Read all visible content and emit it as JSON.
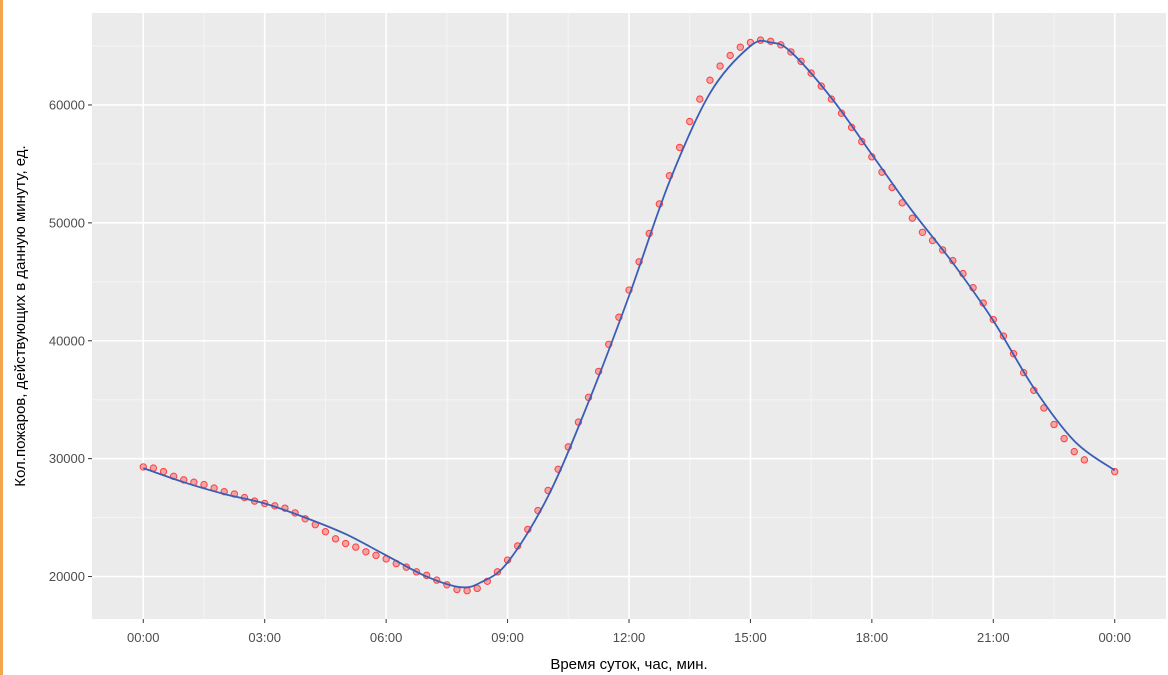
{
  "chart_data": {
    "type": "scatter",
    "xlabel": "Время суток, час, мин.",
    "ylabel": "Кол.пожаров, действующих в данную минуту, ед.",
    "x_unit": "minutes of day",
    "xlim": [
      -76,
      1516
    ],
    "ylim": [
      16400,
      67800
    ],
    "x_ticks": [
      {
        "value": 0,
        "label": "00:00"
      },
      {
        "value": 180,
        "label": "03:00"
      },
      {
        "value": 360,
        "label": "06:00"
      },
      {
        "value": 540,
        "label": "09:00"
      },
      {
        "value": 720,
        "label": "12:00"
      },
      {
        "value": 900,
        "label": "15:00"
      },
      {
        "value": 1080,
        "label": "18:00"
      },
      {
        "value": 1260,
        "label": "21:00"
      },
      {
        "value": 1440,
        "label": "00:00"
      }
    ],
    "y_ticks": [
      {
        "value": 20000,
        "label": "20000"
      },
      {
        "value": 30000,
        "label": "30000"
      },
      {
        "value": 40000,
        "label": "40000"
      },
      {
        "value": 50000,
        "label": "50000"
      },
      {
        "value": 60000,
        "label": "60000"
      }
    ],
    "grid": true,
    "series": [
      {
        "kind": "points",
        "color": "#ff2020",
        "values": [
          [
            0,
            29300
          ],
          [
            15,
            29200
          ],
          [
            30,
            28900
          ],
          [
            45,
            28500
          ],
          [
            60,
            28200
          ],
          [
            75,
            28000
          ],
          [
            90,
            27800
          ],
          [
            105,
            27500
          ],
          [
            120,
            27200
          ],
          [
            135,
            27000
          ],
          [
            150,
            26700
          ],
          [
            165,
            26400
          ],
          [
            180,
            26200
          ],
          [
            195,
            26000
          ],
          [
            210,
            25800
          ],
          [
            225,
            25400
          ],
          [
            240,
            24900
          ],
          [
            255,
            24400
          ],
          [
            270,
            23800
          ],
          [
            285,
            23200
          ],
          [
            300,
            22800
          ],
          [
            315,
            22500
          ],
          [
            330,
            22100
          ],
          [
            345,
            21800
          ],
          [
            360,
            21500
          ],
          [
            375,
            21100
          ],
          [
            390,
            20800
          ],
          [
            405,
            20400
          ],
          [
            420,
            20100
          ],
          [
            435,
            19700
          ],
          [
            450,
            19300
          ],
          [
            465,
            18900
          ],
          [
            480,
            18800
          ],
          [
            495,
            19000
          ],
          [
            510,
            19600
          ],
          [
            525,
            20400
          ],
          [
            540,
            21400
          ],
          [
            555,
            22600
          ],
          [
            570,
            24000
          ],
          [
            585,
            25600
          ],
          [
            600,
            27300
          ],
          [
            615,
            29100
          ],
          [
            630,
            31000
          ],
          [
            645,
            33100
          ],
          [
            660,
            35200
          ],
          [
            675,
            37400
          ],
          [
            690,
            39700
          ],
          [
            705,
            42000
          ],
          [
            720,
            44300
          ],
          [
            735,
            46700
          ],
          [
            750,
            49100
          ],
          [
            765,
            51600
          ],
          [
            780,
            54000
          ],
          [
            795,
            56400
          ],
          [
            810,
            58600
          ],
          [
            825,
            60500
          ],
          [
            840,
            62100
          ],
          [
            855,
            63300
          ],
          [
            870,
            64200
          ],
          [
            885,
            64900
          ],
          [
            900,
            65300
          ],
          [
            915,
            65500
          ],
          [
            930,
            65400
          ],
          [
            945,
            65100
          ],
          [
            960,
            64500
          ],
          [
            975,
            63700
          ],
          [
            990,
            62700
          ],
          [
            1005,
            61600
          ],
          [
            1020,
            60500
          ],
          [
            1035,
            59300
          ],
          [
            1050,
            58100
          ],
          [
            1065,
            56900
          ],
          [
            1080,
            55600
          ],
          [
            1095,
            54300
          ],
          [
            1110,
            53000
          ],
          [
            1125,
            51700
          ],
          [
            1140,
            50400
          ],
          [
            1155,
            49200
          ],
          [
            1170,
            48500
          ],
          [
            1185,
            47700
          ],
          [
            1200,
            46800
          ],
          [
            1215,
            45700
          ],
          [
            1230,
            44500
          ],
          [
            1245,
            43200
          ],
          [
            1260,
            41800
          ],
          [
            1275,
            40400
          ],
          [
            1290,
            38900
          ],
          [
            1305,
            37300
          ],
          [
            1320,
            35800
          ],
          [
            1335,
            34300
          ],
          [
            1350,
            32900
          ],
          [
            1365,
            31700
          ],
          [
            1380,
            30600
          ],
          [
            1395,
            29900
          ],
          [
            1440,
            28900
          ]
        ]
      },
      {
        "kind": "smooth",
        "color": "#3a5db5",
        "values": [
          [
            0,
            29200
          ],
          [
            60,
            28000
          ],
          [
            120,
            27000
          ],
          [
            180,
            26200
          ],
          [
            240,
            25000
          ],
          [
            300,
            23600
          ],
          [
            360,
            21800
          ],
          [
            420,
            20000
          ],
          [
            470,
            19100
          ],
          [
            500,
            19500
          ],
          [
            540,
            21200
          ],
          [
            600,
            26800
          ],
          [
            660,
            34800
          ],
          [
            720,
            43800
          ],
          [
            780,
            53500
          ],
          [
            840,
            61000
          ],
          [
            900,
            65000
          ],
          [
            930,
            65300
          ],
          [
            960,
            64500
          ],
          [
            1020,
            60600
          ],
          [
            1080,
            55800
          ],
          [
            1140,
            51000
          ],
          [
            1200,
            46600
          ],
          [
            1260,
            41700
          ],
          [
            1320,
            36000
          ],
          [
            1380,
            31500
          ],
          [
            1440,
            29000
          ]
        ]
      }
    ]
  }
}
